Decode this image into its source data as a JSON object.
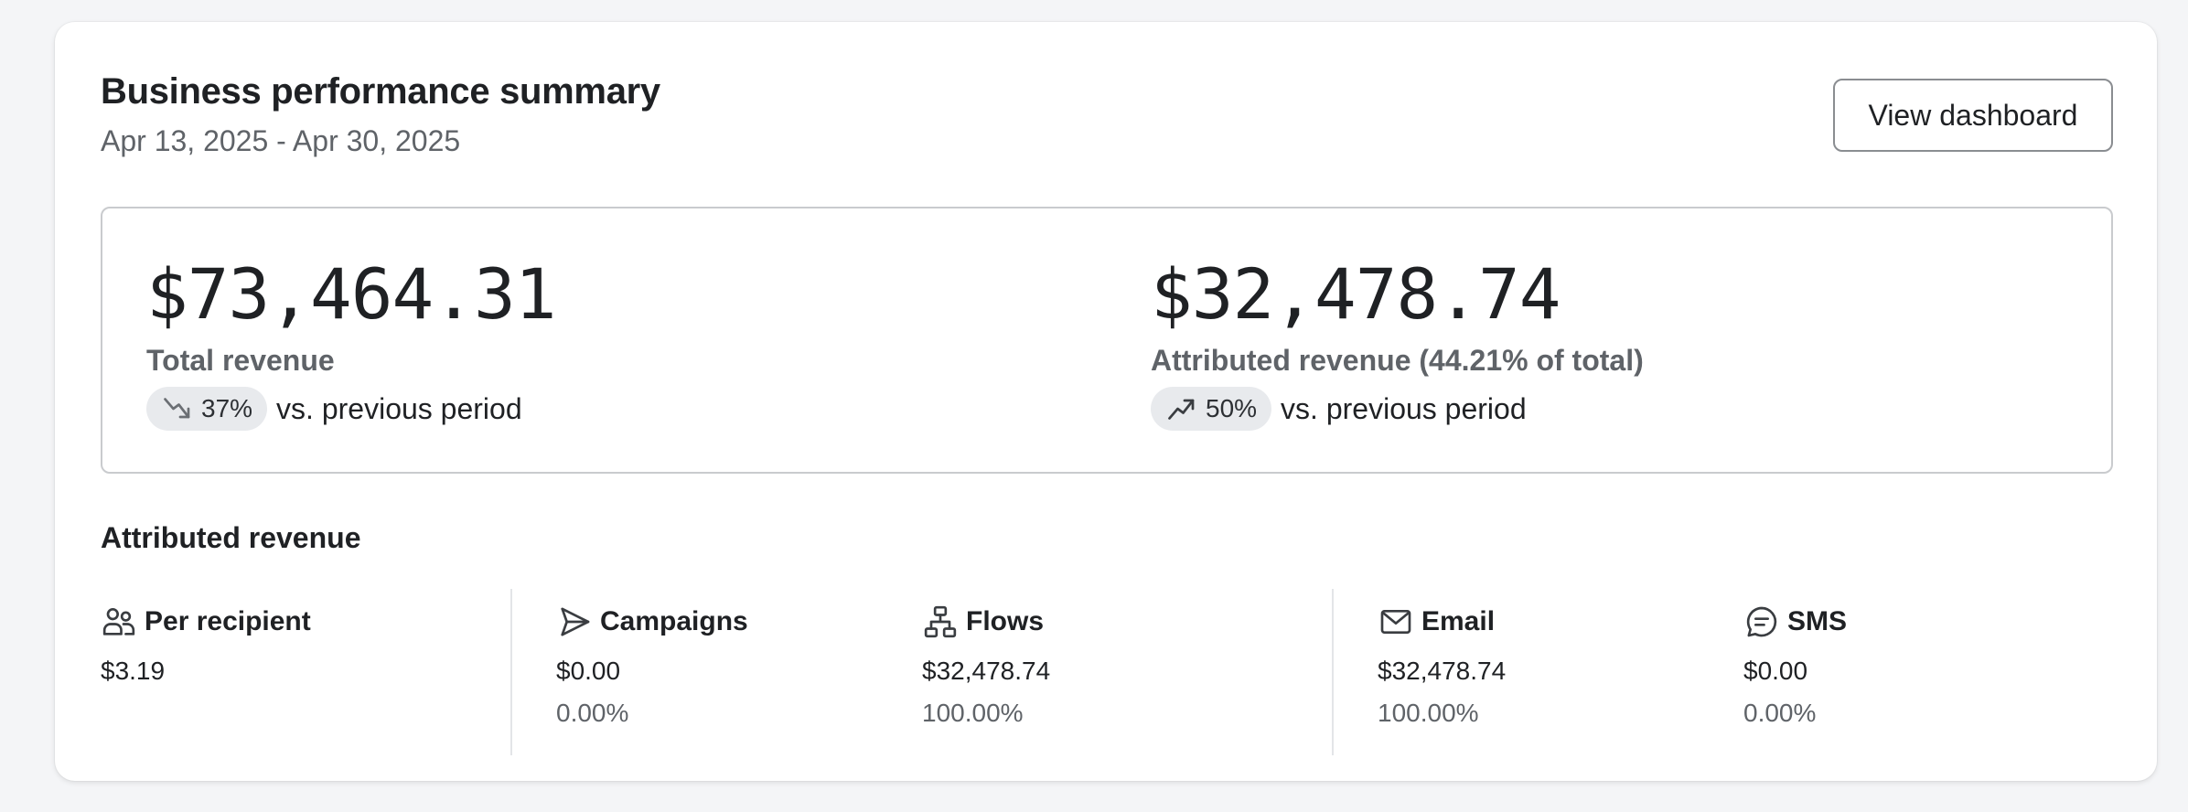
{
  "header": {
    "title": "Business performance summary",
    "date_range": "Apr 13, 2025 - Apr 30, 2025",
    "view_button_label": "View dashboard"
  },
  "summary": {
    "total": {
      "value": "$73,464.31",
      "label": "Total revenue",
      "change": "37%",
      "change_direction": "down",
      "change_icon": "trend-down-icon",
      "suffix": "vs. previous period"
    },
    "attributed": {
      "value": "$32,478.74",
      "label": "Attributed revenue (44.21% of total)",
      "change": "50%",
      "change_direction": "up",
      "change_icon": "trend-up-icon",
      "suffix": "vs. previous period"
    }
  },
  "attributed_section": {
    "title": "Attributed revenue",
    "stats": [
      {
        "key": "per-recipient",
        "icon": "users-icon",
        "label": "Per recipient",
        "amount": "$3.19",
        "percent": ""
      },
      {
        "key": "campaigns",
        "icon": "send-icon",
        "label": "Campaigns",
        "amount": "$0.00",
        "percent": "0.00%"
      },
      {
        "key": "flows",
        "icon": "flow-icon",
        "label": "Flows",
        "amount": "$32,478.74",
        "percent": "100.00%"
      },
      {
        "key": "email",
        "icon": "mail-icon",
        "label": "Email",
        "amount": "$32,478.74",
        "percent": "100.00%"
      },
      {
        "key": "sms",
        "icon": "message-icon",
        "label": "SMS",
        "amount": "$0.00",
        "percent": "0.00%"
      }
    ]
  },
  "colors": {
    "text": "#1f2124",
    "muted": "#5f6368",
    "pill_bg": "#e8eaed",
    "border": "#c9cbce"
  }
}
